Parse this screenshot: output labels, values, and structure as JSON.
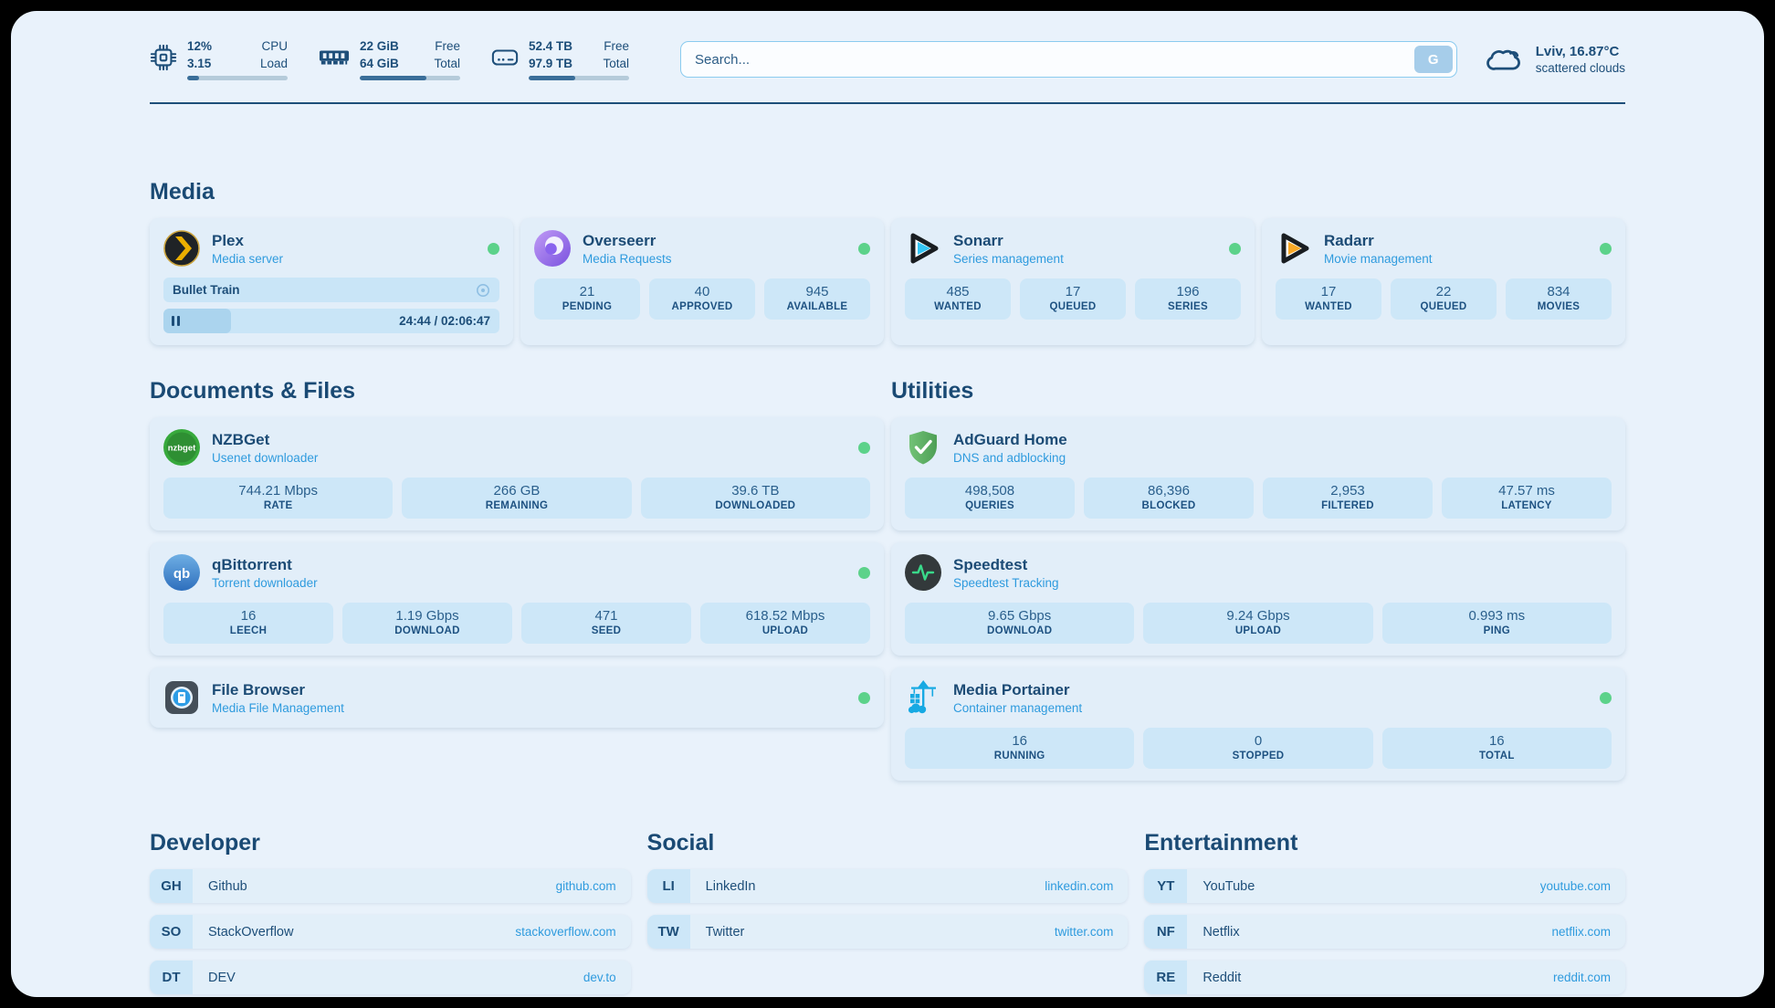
{
  "topbar": {
    "widgets": [
      {
        "icon": "cpu-icon",
        "values": [
          "12%",
          "3.15"
        ],
        "labels": [
          "CPU",
          "Load"
        ],
        "progress": 12
      },
      {
        "icon": "memory-icon",
        "values": [
          "22 GiB",
          "64 GiB"
        ],
        "labels": [
          "Free",
          "Total"
        ],
        "progress": 66
      },
      {
        "icon": "disk-icon",
        "values": [
          "52.4 TB",
          "97.9 TB"
        ],
        "labels": [
          "Free",
          "Total"
        ],
        "progress": 46
      }
    ],
    "search": {
      "placeholder": "Search...",
      "button_label": "G"
    },
    "weather": {
      "location": "Lviv, 16.87°C",
      "condition": "scattered clouds"
    }
  },
  "sections": {
    "media": {
      "title": "Media",
      "plex": {
        "name": "Plex",
        "subtitle": "Media server",
        "now_playing": "Bullet Train",
        "time": "24:44 / 02:06:47",
        "progress": 20
      },
      "overseerr": {
        "name": "Overseerr",
        "subtitle": "Media Requests",
        "stats": [
          {
            "value": "21",
            "label": "PENDING"
          },
          {
            "value": "40",
            "label": "APPROVED"
          },
          {
            "value": "945",
            "label": "AVAILABLE"
          }
        ]
      },
      "sonarr": {
        "name": "Sonarr",
        "subtitle": "Series management",
        "stats": [
          {
            "value": "485",
            "label": "WANTED"
          },
          {
            "value": "17",
            "label": "QUEUED"
          },
          {
            "value": "196",
            "label": "SERIES"
          }
        ]
      },
      "radarr": {
        "name": "Radarr",
        "subtitle": "Movie management",
        "stats": [
          {
            "value": "17",
            "label": "WANTED"
          },
          {
            "value": "22",
            "label": "QUEUED"
          },
          {
            "value": "834",
            "label": "MOVIES"
          }
        ]
      }
    },
    "documents": {
      "title": "Documents & Files",
      "nzbget": {
        "name": "NZBGet",
        "subtitle": "Usenet downloader",
        "stats": [
          {
            "value": "744.21 Mbps",
            "label": "RATE"
          },
          {
            "value": "266 GB",
            "label": "REMAINING"
          },
          {
            "value": "39.6 TB",
            "label": "DOWNLOADED"
          }
        ]
      },
      "qbittorrent": {
        "name": "qBittorrent",
        "subtitle": "Torrent downloader",
        "stats": [
          {
            "value": "16",
            "label": "LEECH"
          },
          {
            "value": "1.19 Gbps",
            "label": "DOWNLOAD"
          },
          {
            "value": "471",
            "label": "SEED"
          },
          {
            "value": "618.52 Mbps",
            "label": "UPLOAD"
          }
        ]
      },
      "filebrowser": {
        "name": "File Browser",
        "subtitle": "Media File Management"
      }
    },
    "utilities": {
      "title": "Utilities",
      "adguard": {
        "name": "AdGuard Home",
        "subtitle": "DNS and adblocking",
        "stats": [
          {
            "value": "498,508",
            "label": "QUERIES"
          },
          {
            "value": "86,396",
            "label": "BLOCKED"
          },
          {
            "value": "2,953",
            "label": "FILTERED"
          },
          {
            "value": "47.57 ms",
            "label": "LATENCY"
          }
        ]
      },
      "speedtest": {
        "name": "Speedtest",
        "subtitle": "Speedtest Tracking",
        "stats": [
          {
            "value": "9.65 Gbps",
            "label": "DOWNLOAD"
          },
          {
            "value": "9.24 Gbps",
            "label": "UPLOAD"
          },
          {
            "value": "0.993 ms",
            "label": "PING"
          }
        ]
      },
      "portainer": {
        "name": "Media Portainer",
        "subtitle": "Container management",
        "stats": [
          {
            "value": "16",
            "label": "RUNNING"
          },
          {
            "value": "0",
            "label": "STOPPED"
          },
          {
            "value": "16",
            "label": "TOTAL"
          }
        ]
      }
    },
    "bookmarks": [
      {
        "title": "Developer",
        "items": [
          {
            "abbr": "GH",
            "name": "Github",
            "url": "github.com"
          },
          {
            "abbr": "SO",
            "name": "StackOverflow",
            "url": "stackoverflow.com"
          },
          {
            "abbr": "DT",
            "name": "DEV",
            "url": "dev.to"
          }
        ]
      },
      {
        "title": "Social",
        "items": [
          {
            "abbr": "LI",
            "name": "LinkedIn",
            "url": "linkedin.com"
          },
          {
            "abbr": "TW",
            "name": "Twitter",
            "url": "twitter.com"
          }
        ]
      },
      {
        "title": "Entertainment",
        "items": [
          {
            "abbr": "YT",
            "name": "YouTube",
            "url": "youtube.com"
          },
          {
            "abbr": "NF",
            "name": "Netflix",
            "url": "netflix.com"
          },
          {
            "abbr": "RE",
            "name": "Reddit",
            "url": "reddit.com"
          }
        ]
      }
    ]
  },
  "colors": {
    "accent_blue": "#2F9BDE",
    "navy": "#1D4E79",
    "status_green": "#5CD28A",
    "page_bg": "#E9F2FB"
  }
}
